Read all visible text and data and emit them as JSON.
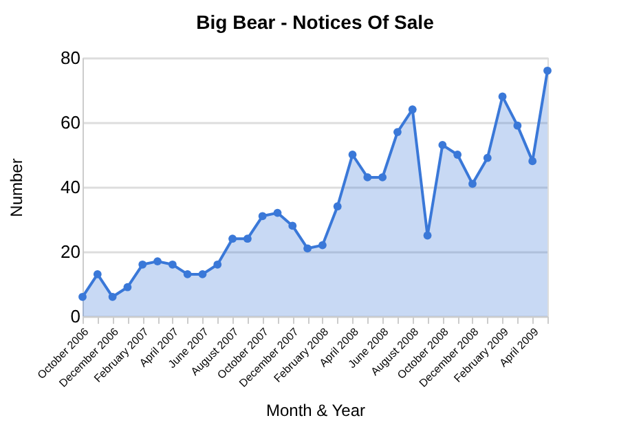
{
  "chart_data": {
    "type": "area",
    "title": "Big Bear - Notices Of Sale",
    "xlabel": "Month & Year",
    "ylabel": "Number",
    "categories": [
      "October 2006",
      null,
      "December 2006",
      null,
      "February 2007",
      null,
      "April 2007",
      null,
      "June 2007",
      null,
      "August 2007",
      null,
      "October 2007",
      null,
      "December 2007",
      null,
      "February 2008",
      null,
      "April 2008",
      null,
      "June 2008",
      null,
      "August 2008",
      null,
      "October 2008",
      null,
      "December 2008",
      null,
      "February 2009",
      null,
      "April 2009",
      null
    ],
    "series": [
      {
        "color": "#3a78d8",
        "values": [
          6,
          13,
          6,
          9,
          16,
          17,
          16,
          13,
          13,
          16,
          24,
          24,
          31,
          32,
          28,
          21,
          22,
          34,
          50,
          43,
          43,
          57,
          64,
          25,
          53,
          50,
          41,
          49,
          68,
          59,
          48,
          76
        ]
      }
    ],
    "ylim": [
      0,
      80
    ],
    "yticks": [
      0,
      20,
      40,
      60,
      80
    ],
    "grid": "y",
    "marker": "circle",
    "line_style": "solid"
  }
}
